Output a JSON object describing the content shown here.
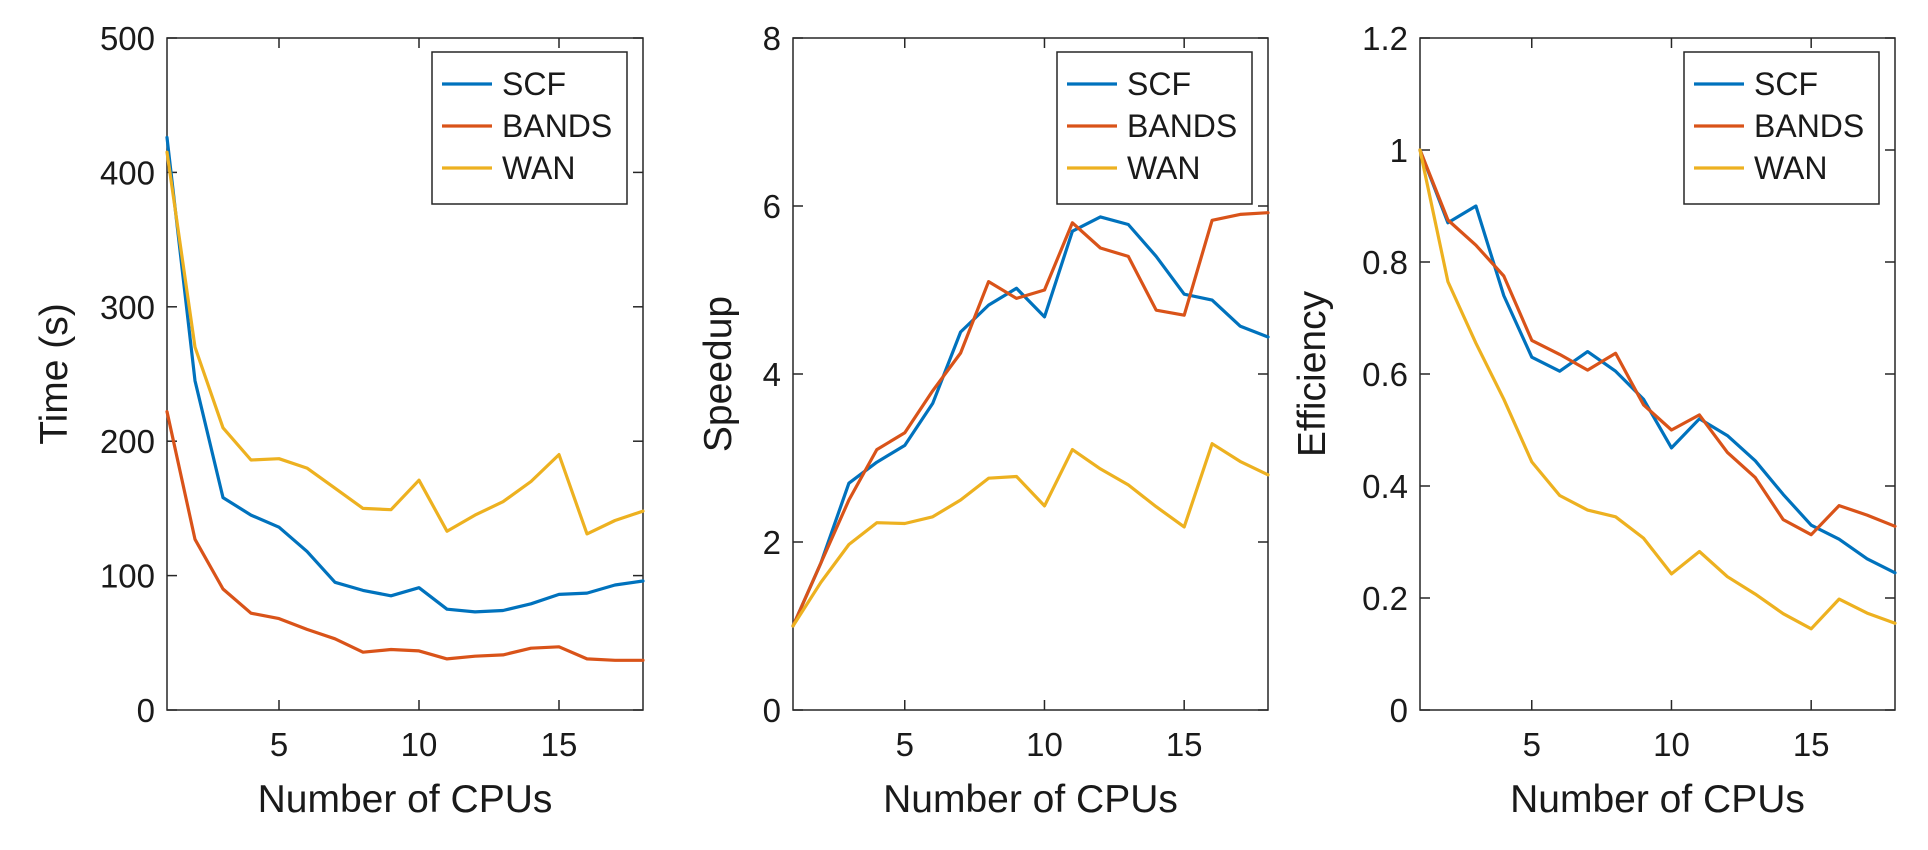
{
  "colors": {
    "SCF": "#0072BD",
    "BANDS": "#D95319",
    "WAN": "#EDB120",
    "axes": "#262626"
  },
  "chart_data": [
    {
      "type": "line",
      "xlabel": "Number of CPUs",
      "ylabel": "Time (s)",
      "xlim": [
        1,
        18
      ],
      "ylim": [
        0,
        500
      ],
      "xticks": [
        5,
        10,
        15
      ],
      "yticks": [
        0,
        100,
        200,
        300,
        400,
        500
      ],
      "ytick_labels": [
        "0",
        "100",
        "200",
        "300",
        "400",
        "500"
      ],
      "legend_position": "top-right",
      "x": [
        1,
        2,
        3,
        4,
        5,
        6,
        7,
        8,
        9,
        10,
        11,
        12,
        13,
        14,
        15,
        16,
        17,
        18
      ],
      "series": [
        {
          "name": "SCF",
          "values": [
            426,
            245,
            158,
            145,
            136,
            118,
            95,
            89,
            85,
            91,
            75,
            73,
            74,
            79,
            86,
            87,
            93,
            96
          ]
        },
        {
          "name": "BANDS",
          "values": [
            222,
            127,
            90,
            72,
            68,
            60,
            53,
            43,
            45,
            44,
            38,
            40,
            41,
            46,
            47,
            38,
            37,
            37
          ]
        },
        {
          "name": "WAN",
          "values": [
            415,
            270,
            210,
            186,
            187,
            180,
            165,
            150,
            149,
            171,
            133,
            145,
            155,
            170,
            190,
            131,
            141,
            148
          ]
        }
      ]
    },
    {
      "type": "line",
      "xlabel": "Number of CPUs",
      "ylabel": "Speedup",
      "xlim": [
        1,
        18
      ],
      "ylim": [
        0,
        8
      ],
      "xticks": [
        5,
        10,
        15
      ],
      "yticks": [
        0,
        2,
        4,
        6,
        8
      ],
      "ytick_labels": [
        "0",
        "2",
        "4",
        "6",
        "8"
      ],
      "legend_position": "top-right",
      "x": [
        1,
        2,
        3,
        4,
        5,
        6,
        7,
        8,
        9,
        10,
        11,
        12,
        13,
        14,
        15,
        16,
        17,
        18
      ],
      "series": [
        {
          "name": "SCF",
          "values": [
            1.0,
            1.75,
            2.7,
            2.95,
            3.15,
            3.65,
            4.5,
            4.82,
            5.02,
            4.68,
            5.7,
            5.87,
            5.78,
            5.4,
            4.95,
            4.88,
            4.57,
            4.44
          ]
        },
        {
          "name": "BANDS",
          "values": [
            1.0,
            1.75,
            2.5,
            3.1,
            3.3,
            3.8,
            4.25,
            5.1,
            4.9,
            5.0,
            5.8,
            5.5,
            5.4,
            4.76,
            4.7,
            5.83,
            5.9,
            5.92
          ]
        },
        {
          "name": "WAN",
          "values": [
            1.0,
            1.52,
            1.97,
            2.23,
            2.22,
            2.3,
            2.5,
            2.76,
            2.78,
            2.43,
            3.1,
            2.87,
            2.68,
            2.42,
            2.18,
            3.17,
            2.96,
            2.8
          ]
        }
      ]
    },
    {
      "type": "line",
      "xlabel": "Number of CPUs",
      "ylabel": "Efficiency",
      "xlim": [
        1,
        18
      ],
      "ylim": [
        0,
        1.2
      ],
      "xticks": [
        5,
        10,
        15
      ],
      "yticks": [
        0,
        0.2,
        0.4,
        0.6,
        0.8,
        1,
        1.2
      ],
      "ytick_labels": [
        "0",
        "0.2",
        "0.4",
        "0.6",
        "0.8",
        "1",
        "1.2"
      ],
      "legend_position": "top-right",
      "x": [
        1,
        2,
        3,
        4,
        5,
        6,
        7,
        8,
        9,
        10,
        11,
        12,
        13,
        14,
        15,
        16,
        17,
        18
      ],
      "series": [
        {
          "name": "SCF",
          "values": [
            1.0,
            0.87,
            0.9,
            0.74,
            0.63,
            0.605,
            0.64,
            0.605,
            0.555,
            0.468,
            0.52,
            0.49,
            0.445,
            0.385,
            0.33,
            0.305,
            0.27,
            0.245
          ]
        },
        {
          "name": "BANDS",
          "values": [
            1.0,
            0.875,
            0.83,
            0.775,
            0.66,
            0.635,
            0.607,
            0.637,
            0.545,
            0.5,
            0.527,
            0.46,
            0.415,
            0.34,
            0.313,
            0.365,
            0.348,
            0.328
          ]
        },
        {
          "name": "WAN",
          "values": [
            1.0,
            0.765,
            0.655,
            0.555,
            0.443,
            0.383,
            0.357,
            0.345,
            0.307,
            0.243,
            0.283,
            0.238,
            0.207,
            0.172,
            0.145,
            0.198,
            0.173,
            0.155
          ]
        }
      ]
    }
  ]
}
